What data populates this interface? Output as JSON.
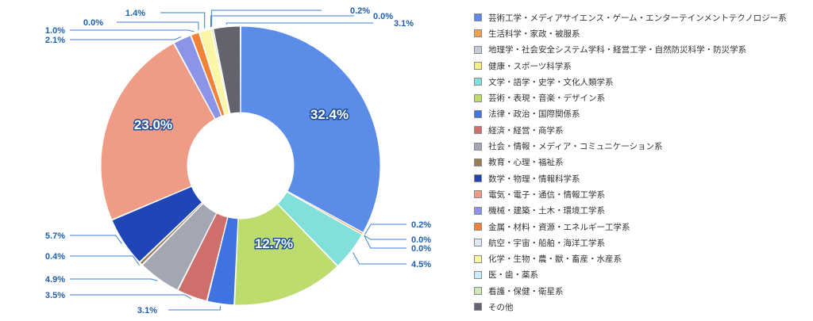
{
  "chart_data": {
    "type": "pie",
    "variant": "donut",
    "legend_position": "right",
    "slices": [
      {
        "label": "芸術工学・メディアサイエンス・ゲーム・エンターテインメントテクノロジー系",
        "value": 32.4,
        "value_label": "32.4%",
        "color": "#5b8de8",
        "label_style": "inside"
      },
      {
        "label": "生活科学・家政・被服系",
        "value": 0.2,
        "value_label": "0.2%",
        "color": "#f0a050",
        "label_style": "callout"
      },
      {
        "label": "地理学・社会安全システム学科・経営工学・自然防災科学・防災学系",
        "value": 0.0,
        "value_label": "0.0%",
        "color": "#c5ccd8",
        "label_style": "callout"
      },
      {
        "label": "健康・スポーツ科学系",
        "value": 0.0,
        "value_label": "0.0%",
        "color": "#f5ee82",
        "label_style": "callout"
      },
      {
        "label": "文学・語学・史学・文化人類学系",
        "value": 4.5,
        "value_label": "4.5%",
        "color": "#82e0da",
        "label_style": "callout"
      },
      {
        "label": "芸術・表現・音楽・デザイン系",
        "value": 12.7,
        "value_label": "12.7%",
        "color": "#bcdc6e",
        "label_style": "inside"
      },
      {
        "label": "法律・政治・国際関係系",
        "value": 3.1,
        "value_label": "3.1%",
        "color": "#3f73e0",
        "label_style": "callout"
      },
      {
        "label": "経済・経営・商学系",
        "value": 3.5,
        "value_label": "3.5%",
        "color": "#cf6f6c",
        "label_style": "callout"
      },
      {
        "label": "社会・情報・メディア・コミュニケーション系",
        "value": 4.9,
        "value_label": "4.9%",
        "color": "#a2a7b3",
        "label_style": "callout"
      },
      {
        "label": "教育・心理・福祉系",
        "value": 0.4,
        "value_label": "0.4%",
        "color": "#9a7d55",
        "label_style": "callout"
      },
      {
        "label": "数学・物理・情報科学系",
        "value": 5.7,
        "value_label": "5.7%",
        "color": "#1f45b6",
        "label_style": "callout"
      },
      {
        "label": "電気・電子・通信・情報工学系",
        "value": 23.0,
        "value_label": "23.0%",
        "color": "#ef9c87",
        "label_style": "inside"
      },
      {
        "label": "機械・建築・土木・環境工学系",
        "value": 2.1,
        "value_label": "2.1%",
        "color": "#8b94e6",
        "label_style": "callout"
      },
      {
        "label": "金属・材料・資源・エネルギー工学系",
        "value": 1.0,
        "value_label": "1.0%",
        "color": "#f28236",
        "label_style": "callout"
      },
      {
        "label": "航空・宇宙・船舶・海洋工学系",
        "value": 0.0,
        "value_label": "0.0%",
        "color": "#dfe6f7",
        "label_style": "callout"
      },
      {
        "label": "化学・生物・農・獣・畜産・水産系",
        "value": 1.4,
        "value_label": "1.4%",
        "color": "#fbf6a6",
        "label_style": "callout"
      },
      {
        "label": "医・歯・薬系",
        "value": 0.0,
        "value_label": "0.0%",
        "color": "#c9ecfa",
        "label_style": "callout"
      },
      {
        "label": "看護・保健・衛星系",
        "value": 0.2,
        "value_label": "0.2%",
        "color": "#cfe6b6",
        "label_style": "callout"
      },
      {
        "label": "その他",
        "value": 3.1,
        "value_label": "3.1%",
        "color": "#63636e",
        "label_style": "callout"
      }
    ]
  }
}
